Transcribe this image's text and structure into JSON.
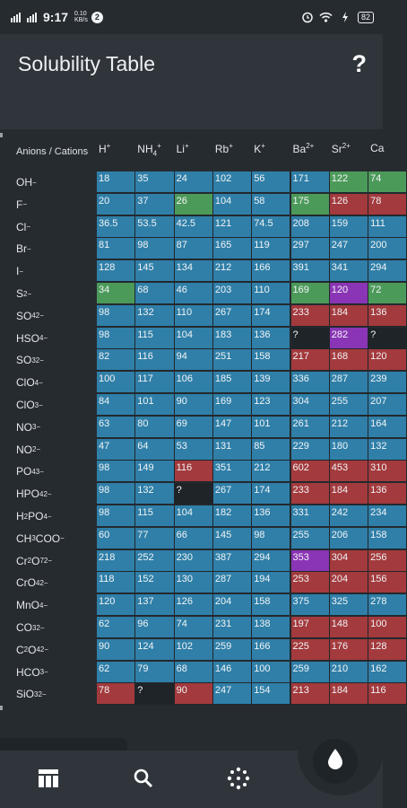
{
  "status_bar": {
    "time": "9:17",
    "net_speed_value": "0.10",
    "net_speed_unit": "KB/s",
    "notif_badge": "2",
    "battery": "82"
  },
  "header": {
    "title": "Solubility Table",
    "help_label": "?"
  },
  "table": {
    "corner_label": "Anions / Cations",
    "columns": [
      {
        "base": "H",
        "sub": "",
        "sup": "+"
      },
      {
        "base": "NH",
        "sub": "4",
        "sup": "+"
      },
      {
        "base": "Li",
        "sub": "",
        "sup": "+"
      },
      {
        "base": "Rb",
        "sub": "",
        "sup": "+"
      },
      {
        "base": "K",
        "sub": "",
        "sup": "+"
      },
      {
        "base": "Ba",
        "sub": "",
        "sup": "2+"
      },
      {
        "base": "Sr",
        "sub": "",
        "sup": "2+"
      },
      {
        "base": "Ca",
        "sub": "",
        "sup": ""
      }
    ],
    "rows": [
      {
        "anion": [
          [
            "OH",
            ""
          ],
          [
            "",
            "−"
          ]
        ],
        "cells": [
          [
            "18",
            "b"
          ],
          [
            "35",
            "b"
          ],
          [
            "24",
            "b"
          ],
          [
            "102",
            "b"
          ],
          [
            "56",
            "b"
          ],
          [
            "171",
            "b"
          ],
          [
            "122",
            "g"
          ],
          [
            "74",
            "g"
          ]
        ]
      },
      {
        "anion": [
          [
            "F",
            ""
          ],
          [
            "",
            "−"
          ]
        ],
        "cells": [
          [
            "20",
            "b"
          ],
          [
            "37",
            "b"
          ],
          [
            "26",
            "g"
          ],
          [
            "104",
            "b"
          ],
          [
            "58",
            "b"
          ],
          [
            "175",
            "g"
          ],
          [
            "126",
            "r"
          ],
          [
            "78",
            "r"
          ]
        ]
      },
      {
        "anion": [
          [
            "Cl",
            ""
          ],
          [
            "",
            "−"
          ]
        ],
        "cells": [
          [
            "36.5",
            "b"
          ],
          [
            "53.5",
            "b"
          ],
          [
            "42.5",
            "b"
          ],
          [
            "121",
            "b"
          ],
          [
            "74.5",
            "b"
          ],
          [
            "208",
            "b"
          ],
          [
            "159",
            "b"
          ],
          [
            "111",
            "b"
          ]
        ]
      },
      {
        "anion": [
          [
            "Br",
            ""
          ],
          [
            "",
            "−"
          ]
        ],
        "cells": [
          [
            "81",
            "b"
          ],
          [
            "98",
            "b"
          ],
          [
            "87",
            "b"
          ],
          [
            "165",
            "b"
          ],
          [
            "119",
            "b"
          ],
          [
            "297",
            "b"
          ],
          [
            "247",
            "b"
          ],
          [
            "200",
            "b"
          ]
        ]
      },
      {
        "anion": [
          [
            "I",
            ""
          ],
          [
            "",
            "−"
          ]
        ],
        "cells": [
          [
            "128",
            "b"
          ],
          [
            "145",
            "b"
          ],
          [
            "134",
            "b"
          ],
          [
            "212",
            "b"
          ],
          [
            "166",
            "b"
          ],
          [
            "391",
            "b"
          ],
          [
            "341",
            "b"
          ],
          [
            "294",
            "b"
          ]
        ]
      },
      {
        "anion": [
          [
            "S",
            ""
          ],
          [
            "",
            "2−"
          ]
        ],
        "cells": [
          [
            "34",
            "g"
          ],
          [
            "68",
            "b"
          ],
          [
            "46",
            "b"
          ],
          [
            "203",
            "b"
          ],
          [
            "110",
            "b"
          ],
          [
            "169",
            "g"
          ],
          [
            "120",
            "p"
          ],
          [
            "72",
            "g"
          ]
        ]
      },
      {
        "anion": [
          [
            "SO",
            ""
          ],
          [
            "4",
            "2−"
          ]
        ],
        "cells": [
          [
            "98",
            "b"
          ],
          [
            "132",
            "b"
          ],
          [
            "110",
            "b"
          ],
          [
            "267",
            "b"
          ],
          [
            "174",
            "b"
          ],
          [
            "233",
            "r"
          ],
          [
            "184",
            "r"
          ],
          [
            "136",
            "r"
          ]
        ]
      },
      {
        "anion": [
          [
            "HSO",
            ""
          ],
          [
            "4",
            "−"
          ]
        ],
        "cells": [
          [
            "98",
            "b"
          ],
          [
            "115",
            "b"
          ],
          [
            "104",
            "b"
          ],
          [
            "183",
            "b"
          ],
          [
            "136",
            "b"
          ],
          [
            "?",
            "d"
          ],
          [
            "282",
            "p"
          ],
          [
            "?",
            "d"
          ]
        ]
      },
      {
        "anion": [
          [
            "SO",
            ""
          ],
          [
            "3",
            "2−"
          ]
        ],
        "cells": [
          [
            "82",
            "b"
          ],
          [
            "116",
            "b"
          ],
          [
            "94",
            "b"
          ],
          [
            "251",
            "b"
          ],
          [
            "158",
            "b"
          ],
          [
            "217",
            "r"
          ],
          [
            "168",
            "r"
          ],
          [
            "120",
            "r"
          ]
        ]
      },
      {
        "anion": [
          [
            "ClO",
            ""
          ],
          [
            "4",
            "−"
          ]
        ],
        "cells": [
          [
            "100",
            "b"
          ],
          [
            "117",
            "b"
          ],
          [
            "106",
            "b"
          ],
          [
            "185",
            "b"
          ],
          [
            "139",
            "b"
          ],
          [
            "336",
            "b"
          ],
          [
            "287",
            "b"
          ],
          [
            "239",
            "b"
          ]
        ]
      },
      {
        "anion": [
          [
            "ClO",
            ""
          ],
          [
            "3",
            "−"
          ]
        ],
        "cells": [
          [
            "84",
            "b"
          ],
          [
            "101",
            "b"
          ],
          [
            "90",
            "b"
          ],
          [
            "169",
            "b"
          ],
          [
            "123",
            "b"
          ],
          [
            "304",
            "b"
          ],
          [
            "255",
            "b"
          ],
          [
            "207",
            "b"
          ]
        ]
      },
      {
        "anion": [
          [
            "NO",
            ""
          ],
          [
            "3",
            "−"
          ]
        ],
        "cells": [
          [
            "63",
            "b"
          ],
          [
            "80",
            "b"
          ],
          [
            "69",
            "b"
          ],
          [
            "147",
            "b"
          ],
          [
            "101",
            "b"
          ],
          [
            "261",
            "b"
          ],
          [
            "212",
            "b"
          ],
          [
            "164",
            "b"
          ]
        ]
      },
      {
        "anion": [
          [
            "NO",
            ""
          ],
          [
            "2",
            "−"
          ]
        ],
        "cells": [
          [
            "47",
            "b"
          ],
          [
            "64",
            "b"
          ],
          [
            "53",
            "b"
          ],
          [
            "131",
            "b"
          ],
          [
            "85",
            "b"
          ],
          [
            "229",
            "b"
          ],
          [
            "180",
            "b"
          ],
          [
            "132",
            "b"
          ]
        ]
      },
      {
        "anion": [
          [
            "PO",
            ""
          ],
          [
            "4",
            "3−"
          ]
        ],
        "cells": [
          [
            "98",
            "b"
          ],
          [
            "149",
            "b"
          ],
          [
            "116",
            "r"
          ],
          [
            "351",
            "b"
          ],
          [
            "212",
            "b"
          ],
          [
            "602",
            "r"
          ],
          [
            "453",
            "r"
          ],
          [
            "310",
            "r"
          ]
        ]
      },
      {
        "anion": [
          [
            "HPO",
            ""
          ],
          [
            "4",
            "2−"
          ]
        ],
        "cells": [
          [
            "98",
            "b"
          ],
          [
            "132",
            "b"
          ],
          [
            "?",
            "d"
          ],
          [
            "267",
            "b"
          ],
          [
            "174",
            "b"
          ],
          [
            "233",
            "r"
          ],
          [
            "184",
            "r"
          ],
          [
            "136",
            "r"
          ]
        ]
      },
      {
        "anion": [
          [
            "H",
            ""
          ],
          [
            "2",
            "PO"
          ],
          [
            "4",
            "−"
          ]
        ],
        "cells": [
          [
            "98",
            "b"
          ],
          [
            "115",
            "b"
          ],
          [
            "104",
            "b"
          ],
          [
            "182",
            "b"
          ],
          [
            "136",
            "b"
          ],
          [
            "331",
            "b"
          ],
          [
            "242",
            "b"
          ],
          [
            "234",
            "b"
          ]
        ]
      },
      {
        "anion": [
          [
            "CH",
            ""
          ],
          [
            "3",
            "COO"
          ],
          [
            "",
            "−"
          ]
        ],
        "cells": [
          [
            "60",
            "b"
          ],
          [
            "77",
            "b"
          ],
          [
            "66",
            "b"
          ],
          [
            "145",
            "b"
          ],
          [
            "98",
            "b"
          ],
          [
            "255",
            "b"
          ],
          [
            "206",
            "b"
          ],
          [
            "158",
            "b"
          ]
        ]
      },
      {
        "anion": [
          [
            "Cr",
            ""
          ],
          [
            "2",
            "O"
          ],
          [
            "7",
            "2−"
          ]
        ],
        "cells": [
          [
            "218",
            "b"
          ],
          [
            "252",
            "b"
          ],
          [
            "230",
            "b"
          ],
          [
            "387",
            "b"
          ],
          [
            "294",
            "b"
          ],
          [
            "353",
            "p"
          ],
          [
            "304",
            "r"
          ],
          [
            "256",
            "r"
          ]
        ]
      },
      {
        "anion": [
          [
            "CrO",
            ""
          ],
          [
            "4",
            "2−"
          ]
        ],
        "cells": [
          [
            "118",
            "b"
          ],
          [
            "152",
            "b"
          ],
          [
            "130",
            "b"
          ],
          [
            "287",
            "b"
          ],
          [
            "194",
            "b"
          ],
          [
            "253",
            "r"
          ],
          [
            "204",
            "r"
          ],
          [
            "156",
            "r"
          ]
        ]
      },
      {
        "anion": [
          [
            "MnO",
            ""
          ],
          [
            "4",
            "−"
          ]
        ],
        "cells": [
          [
            "120",
            "b"
          ],
          [
            "137",
            "b"
          ],
          [
            "126",
            "b"
          ],
          [
            "204",
            "b"
          ],
          [
            "158",
            "b"
          ],
          [
            "375",
            "b"
          ],
          [
            "325",
            "b"
          ],
          [
            "278",
            "b"
          ]
        ]
      },
      {
        "anion": [
          [
            "CO",
            ""
          ],
          [
            "3",
            "2−"
          ]
        ],
        "cells": [
          [
            "62",
            "b"
          ],
          [
            "96",
            "b"
          ],
          [
            "74",
            "b"
          ],
          [
            "231",
            "b"
          ],
          [
            "138",
            "b"
          ],
          [
            "197",
            "r"
          ],
          [
            "148",
            "r"
          ],
          [
            "100",
            "r"
          ]
        ]
      },
      {
        "anion": [
          [
            "C",
            ""
          ],
          [
            "2",
            "O"
          ],
          [
            "4",
            "2−"
          ]
        ],
        "cells": [
          [
            "90",
            "b"
          ],
          [
            "124",
            "b"
          ],
          [
            "102",
            "b"
          ],
          [
            "259",
            "b"
          ],
          [
            "166",
            "b"
          ],
          [
            "225",
            "r"
          ],
          [
            "176",
            "r"
          ],
          [
            "128",
            "r"
          ]
        ]
      },
      {
        "anion": [
          [
            "HCO",
            ""
          ],
          [
            "3",
            "−"
          ]
        ],
        "cells": [
          [
            "62",
            "b"
          ],
          [
            "79",
            "b"
          ],
          [
            "68",
            "b"
          ],
          [
            "146",
            "b"
          ],
          [
            "100",
            "b"
          ],
          [
            "259",
            "b"
          ],
          [
            "210",
            "b"
          ],
          [
            "162",
            "b"
          ]
        ]
      },
      {
        "anion": [
          [
            "SiO",
            ""
          ],
          [
            "3",
            "2−"
          ]
        ],
        "cells": [
          [
            "78",
            "r"
          ],
          [
            "?",
            "d"
          ],
          [
            "90",
            "r"
          ],
          [
            "247",
            "b"
          ],
          [
            "154",
            "b"
          ],
          [
            "213",
            "r"
          ],
          [
            "184",
            "r"
          ],
          [
            "116",
            "r"
          ]
        ]
      }
    ]
  },
  "nav": {
    "items": [
      "table-icon",
      "search-icon",
      "molecule-icon"
    ],
    "fab": "drop-icon"
  },
  "colors": {
    "b": "#2f7fa8",
    "g": "#4c9a5a",
    "r": "#a33a3d",
    "p": "#8a35b5",
    "d": "#1f2428"
  }
}
